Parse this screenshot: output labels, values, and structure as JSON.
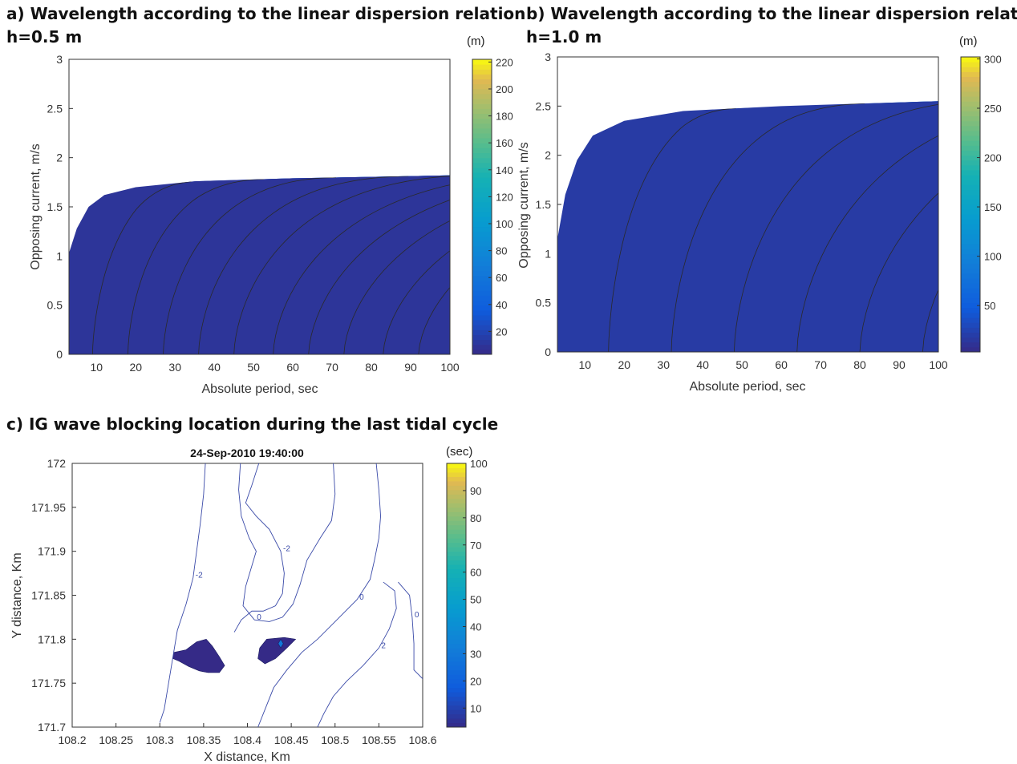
{
  "chart_data": [
    {
      "id": "a",
      "type": "heatmap",
      "title": "a) Wavelength according to the linear dispersion relation",
      "subtitle": "h=0.5 m",
      "xlabel": "Absolute period, sec",
      "ylabel": "Opposing current, m/s",
      "xlim": [
        3,
        100
      ],
      "ylim": [
        0,
        3
      ],
      "xticks": [
        "10",
        "20",
        "30",
        "40",
        "50",
        "60",
        "70",
        "80",
        "90",
        "100"
      ],
      "yticks": [
        "0",
        "0.5",
        "1",
        "1.5",
        "2",
        "2.5",
        "3"
      ],
      "colorbar": {
        "unit": "(m)",
        "range": [
          3,
          222
        ],
        "ticks": [
          "20",
          "40",
          "60",
          "80",
          "100",
          "120",
          "140",
          "160",
          "180",
          "200",
          "220"
        ]
      },
      "blocking_limit": [
        [
          3,
          1.03
        ],
        [
          5,
          1.28
        ],
        [
          8,
          1.5
        ],
        [
          12,
          1.62
        ],
        [
          20,
          1.7
        ],
        [
          35,
          1.76
        ],
        [
          60,
          1.79
        ],
        [
          100,
          1.82
        ]
      ],
      "contour_intersections_at_zero_current": [
        9,
        18,
        27,
        36,
        45,
        55,
        64,
        73,
        83,
        92
      ],
      "depth_m": 0.5
    },
    {
      "id": "b",
      "type": "heatmap",
      "title": "b) Wavelength according to the linear dispersion relation",
      "subtitle": "h=1.0 m",
      "xlabel": "Absolute period, sec",
      "ylabel": "Opposing current, m/s",
      "xlim": [
        3,
        100
      ],
      "ylim": [
        0,
        3
      ],
      "xticks": [
        "10",
        "20",
        "30",
        "40",
        "50",
        "60",
        "70",
        "80",
        "90",
        "100"
      ],
      "yticks": [
        "0",
        "0.5",
        "1",
        "1.5",
        "2",
        "2.5",
        "3"
      ],
      "colorbar": {
        "unit": "(m)",
        "range": [
          3,
          302
        ],
        "ticks": [
          "50",
          "100",
          "150",
          "200",
          "250",
          "300"
        ]
      },
      "blocking_limit": [
        [
          3,
          1.15
        ],
        [
          5,
          1.6
        ],
        [
          8,
          1.95
        ],
        [
          12,
          2.2
        ],
        [
          20,
          2.35
        ],
        [
          35,
          2.45
        ],
        [
          60,
          2.5
        ],
        [
          100,
          2.55
        ]
      ],
      "contour_intersections_at_zero_current": [
        16,
        32,
        48,
        64,
        80,
        96
      ],
      "depth_m": 1.0
    },
    {
      "id": "c",
      "type": "heatmap",
      "title": "c) IG wave blocking location during the last tidal cycle",
      "subtitle": "24-Sep-2010 19:40:00",
      "xlabel": "X distance, Km",
      "ylabel": "Y distance, Km",
      "xlim": [
        108.2,
        108.6
      ],
      "ylim": [
        171.7,
        172
      ],
      "xticks": [
        "108.2",
        "108.25",
        "108.3",
        "108.35",
        "108.4",
        "108.45",
        "108.5",
        "108.55",
        "108.6"
      ],
      "yticks": [
        "171.7",
        "171.75",
        "171.8",
        "171.85",
        "171.9",
        "171.95",
        "172"
      ],
      "colorbar": {
        "unit": "(sec)",
        "range": [
          3,
          100
        ],
        "ticks": [
          "10",
          "20",
          "30",
          "40",
          "50",
          "60",
          "70",
          "80",
          "90",
          "100"
        ]
      },
      "bathymetry_contours": [
        {
          "level": "-2",
          "points": [
            [
              108.352,
              172
            ],
            [
              108.35,
              171.965
            ],
            [
              108.346,
              171.93
            ],
            [
              108.342,
              171.9
            ],
            [
              108.338,
              171.87
            ],
            [
              108.33,
              171.84
            ],
            [
              108.32,
              171.81
            ],
            [
              108.315,
              171.78
            ],
            [
              108.31,
              171.75
            ],
            [
              108.305,
              171.72
            ],
            [
              108.3,
              171.705
            ]
          ]
        },
        {
          "level": "0",
          "points": [
            [
              108.392,
              172
            ],
            [
              108.39,
              171.97
            ],
            [
              108.393,
              171.94
            ],
            [
              108.402,
              171.915
            ],
            [
              108.41,
              171.9
            ],
            [
              108.404,
              171.88
            ],
            [
              108.398,
              171.86
            ],
            [
              108.395,
              171.838
            ],
            [
              108.408,
              171.822
            ],
            [
              108.425,
              171.82
            ],
            [
              108.44,
              171.825
            ],
            [
              108.452,
              171.84
            ],
            [
              108.46,
              171.862
            ],
            [
              108.468,
              171.89
            ],
            [
              108.483,
              171.915
            ],
            [
              108.496,
              171.935
            ],
            [
              108.5,
              171.965
            ],
            [
              108.498,
              172
            ]
          ]
        },
        {
          "level": "-2",
          "points": [
            [
              108.413,
              172
            ],
            [
              108.405,
              171.975
            ],
            [
              108.398,
              171.955
            ],
            [
              108.41,
              171.94
            ],
            [
              108.425,
              171.925
            ],
            [
              108.438,
              171.9
            ],
            [
              108.442,
              171.875
            ],
            [
              108.44,
              171.852
            ],
            [
              108.432,
              171.838
            ],
            [
              108.418,
              171.832
            ],
            [
              108.405,
              171.832
            ],
            [
              108.393,
              171.822
            ],
            [
              108.385,
              171.808
            ]
          ]
        },
        {
          "level": "0",
          "points": [
            [
              108.547,
              172
            ],
            [
              108.55,
              171.97
            ],
            [
              108.552,
              171.94
            ],
            [
              108.55,
              171.915
            ],
            [
              108.545,
              171.89
            ],
            [
              108.54,
              171.868
            ],
            [
              108.525,
              171.845
            ],
            [
              108.5,
              171.82
            ],
            [
              108.48,
              171.8
            ],
            [
              108.462,
              171.785
            ],
            [
              108.445,
              171.765
            ],
            [
              108.43,
              171.745
            ],
            [
              108.42,
              171.72
            ],
            [
              108.412,
              171.7
            ]
          ]
        },
        {
          "level": "2",
          "points": [
            [
              108.555,
              171.865
            ],
            [
              108.568,
              171.855
            ],
            [
              108.57,
              171.835
            ],
            [
              108.562,
              171.812
            ],
            [
              108.55,
              171.79
            ],
            [
              108.532,
              171.77
            ],
            [
              108.513,
              171.752
            ],
            [
              108.498,
              171.735
            ],
            [
              108.487,
              171.715
            ],
            [
              108.48,
              171.7
            ]
          ]
        },
        {
          "level": "0",
          "points": [
            [
              108.572,
              171.865
            ],
            [
              108.585,
              171.85
            ],
            [
              108.588,
              171.825
            ],
            [
              108.59,
              171.795
            ],
            [
              108.59,
              171.765
            ],
            [
              108.6,
              171.755
            ]
          ]
        }
      ],
      "blocking_regions": [
        {
          "period_s": 3,
          "points": [
            [
              108.316,
              171.785
            ],
            [
              108.33,
              171.788
            ],
            [
              108.342,
              171.797
            ],
            [
              108.353,
              171.8
            ],
            [
              108.36,
              171.792
            ],
            [
              108.368,
              171.78
            ],
            [
              108.374,
              171.77
            ],
            [
              108.368,
              171.762
            ],
            [
              108.355,
              171.762
            ],
            [
              108.345,
              171.764
            ],
            [
              108.333,
              171.769
            ],
            [
              108.322,
              171.775
            ],
            [
              108.315,
              171.778
            ]
          ]
        },
        {
          "period_s": 3,
          "points": [
            [
              108.422,
              171.8
            ],
            [
              108.442,
              171.802
            ],
            [
              108.455,
              171.8
            ],
            [
              108.445,
              171.79
            ],
            [
              108.432,
              171.778
            ],
            [
              108.42,
              171.772
            ],
            [
              108.412,
              171.778
            ],
            [
              108.414,
              171.79
            ]
          ]
        },
        {
          "period_s": 30,
          "points": [
            [
              108.438,
              171.8
            ],
            [
              108.441,
              171.795
            ],
            [
              108.438,
              171.79
            ],
            [
              108.435,
              171.795
            ]
          ]
        }
      ]
    }
  ]
}
